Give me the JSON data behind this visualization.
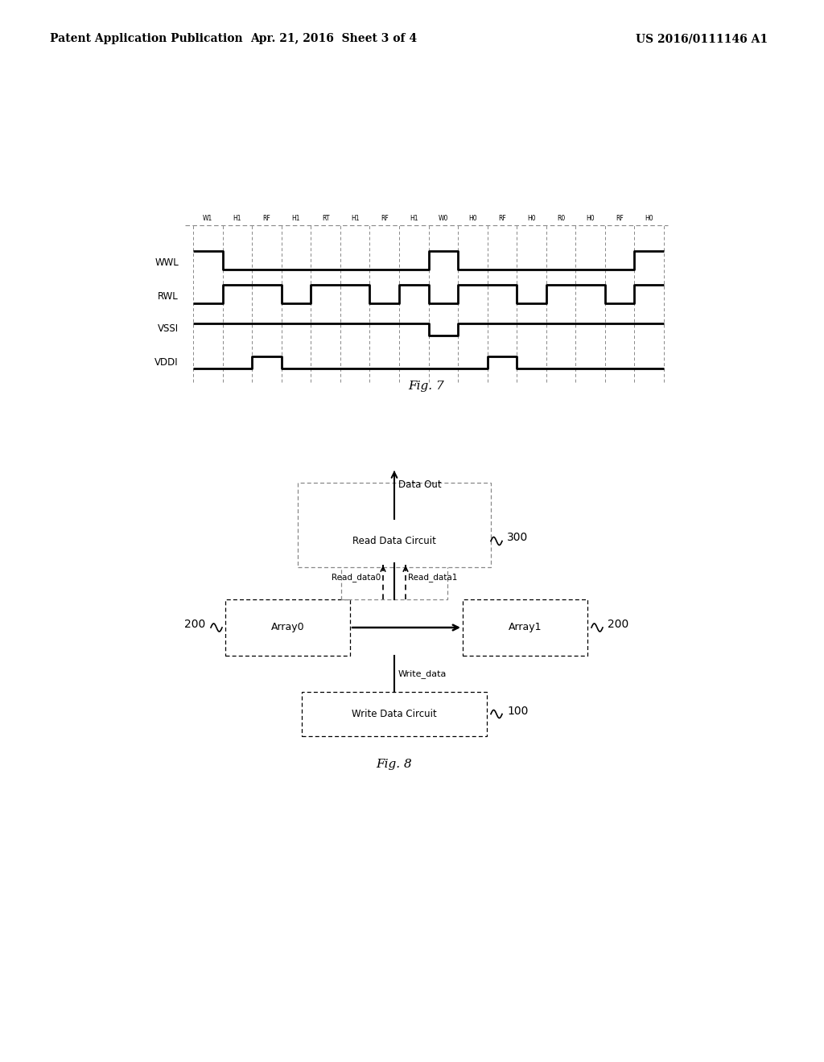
{
  "header_left": "Patent Application Publication",
  "header_mid": "Apr. 21, 2016  Sheet 3 of 4",
  "header_right": "US 2016/0111146 A1",
  "fig7_label": "Fig. 7",
  "fig8_label": "Fig. 8",
  "signal_labels": [
    "WWL",
    "RWL",
    "VSSI",
    "VDDI"
  ],
  "timing_labels": [
    "W1",
    "H1",
    "RF",
    "H1",
    "RT",
    "H1",
    "RF",
    "H1",
    "W0",
    "H0",
    "RF",
    "H0",
    "R0",
    "H0",
    "RF",
    "H0"
  ],
  "background_color": "#ffffff",
  "line_color": "#000000",
  "dashed_color": "#888888",
  "wwl_pattern": [
    1,
    0,
    0,
    0,
    0,
    0,
    0,
    0,
    1,
    0,
    0,
    0,
    0,
    0,
    0,
    1
  ],
  "rwl_pattern": [
    0,
    1,
    1,
    0,
    1,
    1,
    0,
    1,
    0,
    1,
    1,
    0,
    1,
    1,
    0,
    1
  ],
  "vssi_pattern": [
    1,
    1,
    1,
    1,
    1,
    1,
    1,
    1,
    0,
    1,
    1,
    1,
    1,
    1,
    1,
    1
  ],
  "vddi_pattern": [
    0,
    0,
    1,
    0,
    0,
    0,
    0,
    0,
    0,
    0,
    1,
    0,
    0,
    0,
    0,
    0
  ]
}
